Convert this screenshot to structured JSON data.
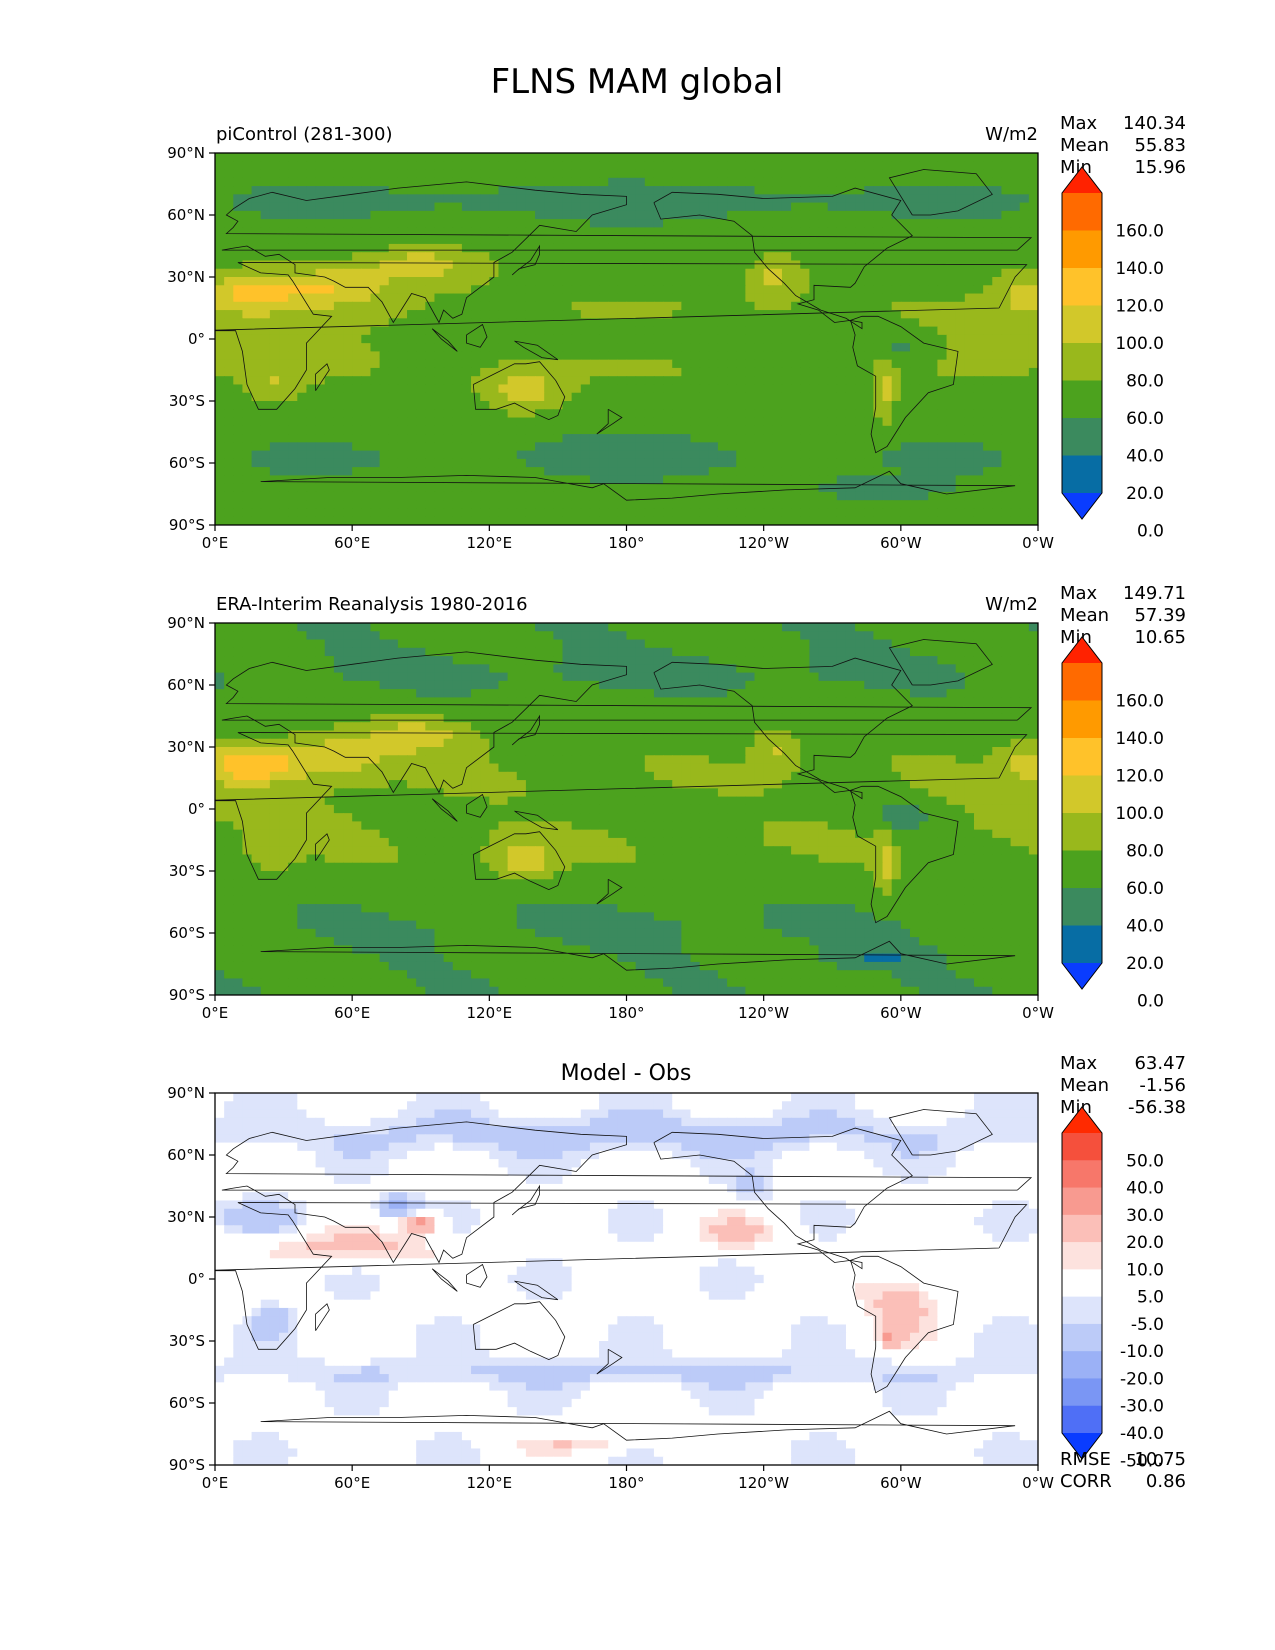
{
  "figure": {
    "title": "FLNS MAM global"
  },
  "chart_data": [
    {
      "type": "heatmap",
      "name": "piControl",
      "left_title": "piControl (281-300)",
      "center_title": "",
      "units": "W/m2",
      "xlim": [
        0,
        360
      ],
      "ylim": [
        -90,
        90
      ],
      "x_ticks": [
        "0°E",
        "60°E",
        "120°E",
        "180°",
        "120°W",
        "60°W",
        "0°W"
      ],
      "y_ticks": [
        "90°N",
        "60°N",
        "30°N",
        "0°",
        "30°S",
        "60°S",
        "90°S"
      ],
      "stats": [
        {
          "label": "Max",
          "value": "140.34"
        },
        {
          "label": "Mean",
          "value": "55.83"
        },
        {
          "label": "Min",
          "value": "15.96"
        }
      ],
      "colorbar": {
        "levels": [
          "160.0",
          "140.0",
          "120.0",
          "100.0",
          "80.0",
          "60.0",
          "40.0",
          "20.0",
          "0.0"
        ],
        "colors": [
          "#ff2200",
          "#ff6a00",
          "#ff9a00",
          "#ffc22a",
          "#d2c82a",
          "#99b81c",
          "#4ca21e",
          "#3b8a5e",
          "#076da4",
          "#0a3cff"
        ]
      },
      "footer": []
    },
    {
      "type": "heatmap",
      "name": "obs",
      "left_title": "ERA-Interim Reanalysis 1980-2016",
      "center_title": "",
      "units": "W/m2",
      "xlim": [
        0,
        360
      ],
      "ylim": [
        -90,
        90
      ],
      "x_ticks": [
        "0°E",
        "60°E",
        "120°E",
        "180°",
        "120°W",
        "60°W",
        "0°W"
      ],
      "y_ticks": [
        "90°N",
        "60°N",
        "30°N",
        "0°",
        "30°S",
        "60°S",
        "90°S"
      ],
      "stats": [
        {
          "label": "Max",
          "value": "149.71"
        },
        {
          "label": "Mean",
          "value": "57.39"
        },
        {
          "label": "Min",
          "value": "10.65"
        }
      ],
      "colorbar": {
        "levels": [
          "160.0",
          "140.0",
          "120.0",
          "100.0",
          "80.0",
          "60.0",
          "40.0",
          "20.0",
          "0.0"
        ],
        "colors": [
          "#ff2200",
          "#ff6a00",
          "#ff9a00",
          "#ffc22a",
          "#d2c82a",
          "#99b81c",
          "#4ca21e",
          "#3b8a5e",
          "#076da4",
          "#0a3cff"
        ]
      },
      "footer": []
    },
    {
      "type": "heatmap",
      "name": "diff",
      "left_title": "",
      "center_title": "Model - Obs",
      "units": "",
      "xlim": [
        0,
        360
      ],
      "ylim": [
        -90,
        90
      ],
      "x_ticks": [
        "0°E",
        "60°E",
        "120°E",
        "180°",
        "120°W",
        "60°W",
        "0°W"
      ],
      "y_ticks": [
        "90°N",
        "60°N",
        "30°N",
        "0°",
        "30°S",
        "60°S",
        "90°S"
      ],
      "stats": [
        {
          "label": "Max",
          "value": "63.47"
        },
        {
          "label": "Mean",
          "value": "-1.56"
        },
        {
          "label": "Min",
          "value": "-56.38"
        }
      ],
      "colorbar": {
        "levels": [
          "50.0",
          "40.0",
          "30.0",
          "20.0",
          "10.0",
          "5.0",
          "-5.0",
          "-10.0",
          "-20.0",
          "-30.0",
          "-40.0",
          "-50.0"
        ],
        "colors": [
          "#ff2a00",
          "#f5503c",
          "#f7776a",
          "#f89a90",
          "#fbbfb8",
          "#fde2de",
          "#ffffff",
          "#dde4fb",
          "#bccbf8",
          "#9bb1f6",
          "#7a96f4",
          "#4f6ff6",
          "#0a3cff"
        ]
      },
      "footer": [
        {
          "label": "RMSE",
          "value": "10.75"
        },
        {
          "label": "CORR",
          "value": "0.86"
        }
      ]
    }
  ]
}
